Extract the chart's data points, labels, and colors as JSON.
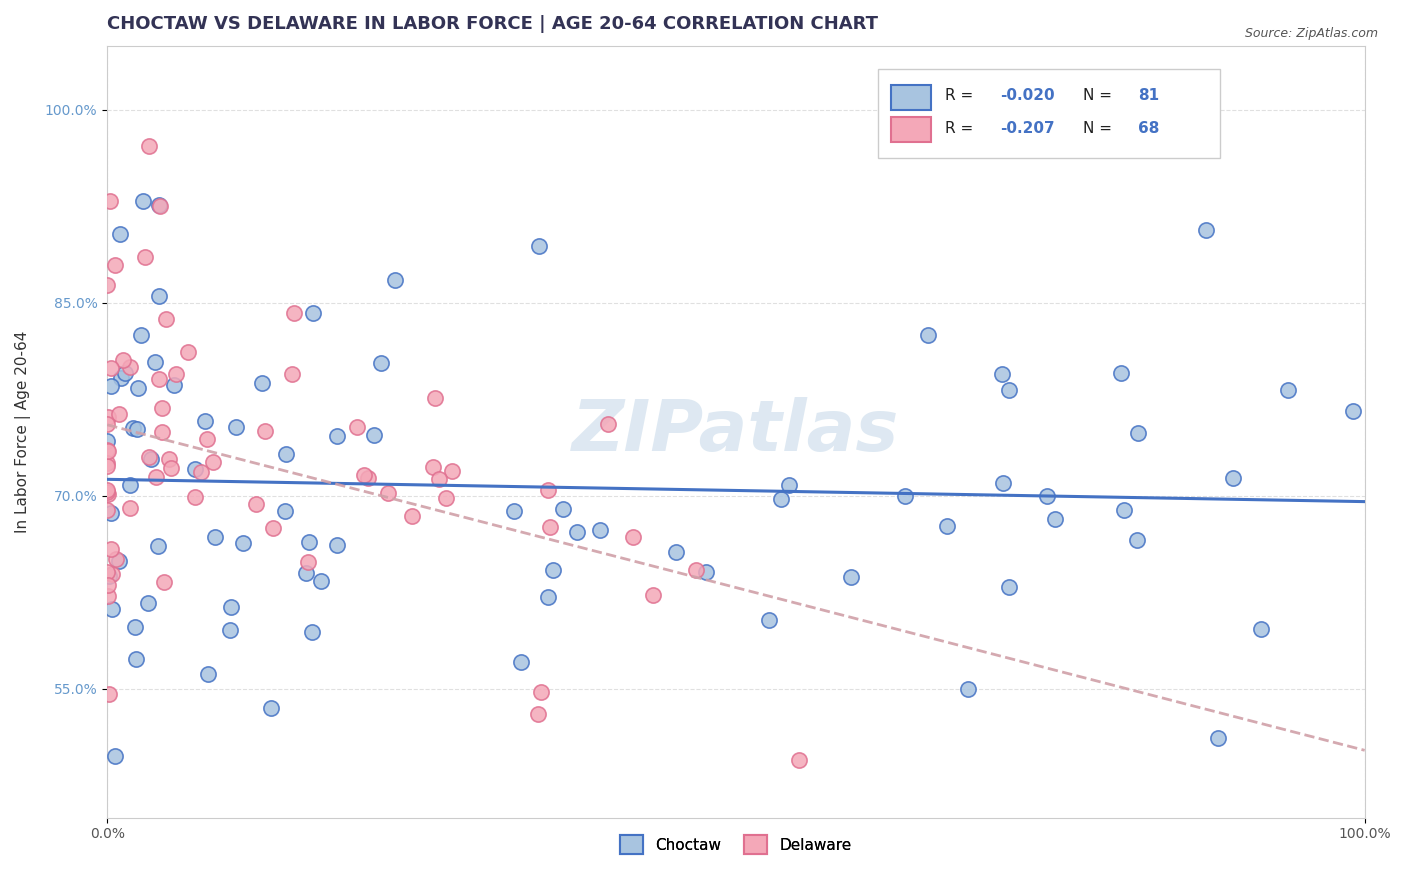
{
  "title": "CHOCTAW VS DELAWARE IN LABOR FORCE | AGE 20-64 CORRELATION CHART",
  "source_text": "Source: ZipAtlas.com",
  "xlabel": "",
  "ylabel": "In Labor Force | Age 20-64",
  "xlim": [
    0.0,
    1.0
  ],
  "ylim": [
    0.45,
    1.05
  ],
  "xticks": [
    0.0,
    1.0
  ],
  "xticklabels": [
    "0.0%",
    "100.0%"
  ],
  "yticks": [
    0.55,
    0.7,
    0.85,
    1.0
  ],
  "yticklabels": [
    "55.0%",
    "70.0%",
    "85.0%",
    "100.0%"
  ],
  "choctaw_color": "#a8c4e0",
  "delaware_color": "#f4a8b8",
  "choctaw_trend_color": "#4472c4",
  "delaware_trend_color": "#d0a0a8",
  "watermark_text": "ZIPatlas",
  "watermark_color": "#c8daea",
  "choctaw_R": -0.02,
  "choctaw_N": 81,
  "delaware_R": -0.207,
  "delaware_N": 68,
  "seed": 42,
  "title_fontsize": 13,
  "axis_label_fontsize": 11,
  "tick_fontsize": 10,
  "dot_size": 120,
  "dot_linewidth": 1.2,
  "grid_color": "#e0e0e0",
  "grid_style": "--",
  "legend_R_color": "#4472c4",
  "legend_text_color": "#222222",
  "ytick_color": "#6699cc"
}
